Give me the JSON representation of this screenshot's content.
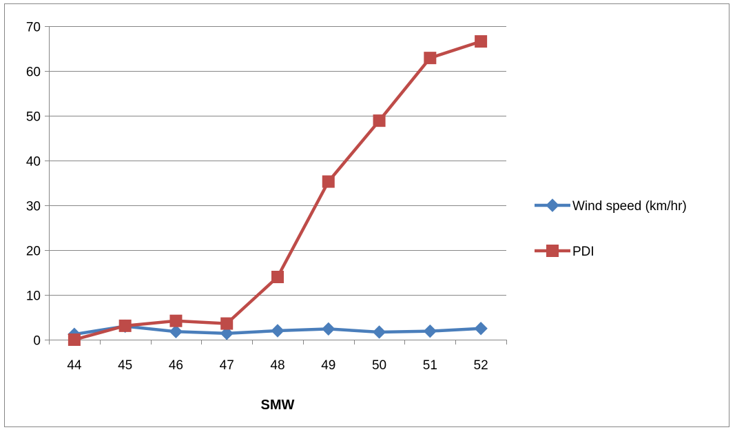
{
  "chart_data": {
    "type": "line",
    "title": "",
    "xlabel": "SMW",
    "ylabel": "",
    "categories": [
      "44",
      "45",
      "46",
      "47",
      "48",
      "49",
      "50",
      "51",
      "52"
    ],
    "ylim": [
      0,
      70
    ],
    "yticks": [
      0,
      10,
      20,
      30,
      40,
      50,
      60,
      70
    ],
    "grid": true,
    "legend_position": "right",
    "series": [
      {
        "name": "Wind speed (km/hr)",
        "values": [
          1.2,
          3.0,
          1.8,
          1.4,
          2.0,
          2.4,
          1.7,
          1.9,
          2.5
        ],
        "color": "#4a7ebb",
        "marker": "diamond"
      },
      {
        "name": "PDI",
        "values": [
          0.0,
          3.1,
          4.2,
          3.6,
          14.0,
          35.3,
          48.9,
          62.9,
          66.6
        ],
        "color": "#be4b48",
        "marker": "square"
      }
    ]
  }
}
